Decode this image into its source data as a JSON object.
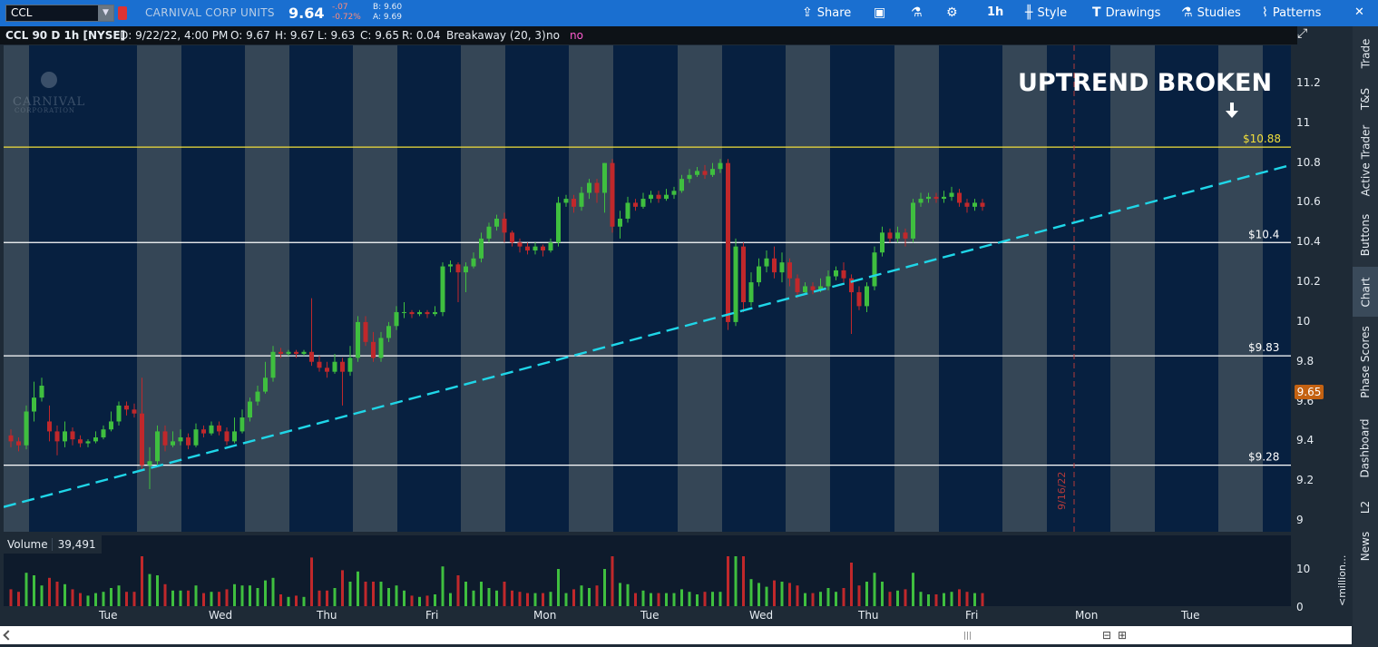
{
  "toolbar": {
    "symbol": "CCL",
    "company": "CARNIVAL CORP UNITS",
    "last": "9.64",
    "change": "-.07",
    "change_pct": "-0.72%",
    "bid": "B: 9.60",
    "ask": "A: 9.69",
    "share": "Share",
    "aggregation": "1h",
    "style": "Style",
    "drawings": "Drawings",
    "studies": "Studies",
    "patterns": "Patterns",
    "icons": {
      "share": "share-icon",
      "template": "template-icon",
      "flask": "flask-icon",
      "gear": "gear-icon",
      "candles": "candlestick-icon",
      "drawings": "text-t-icon",
      "studies": "flask-icon",
      "patterns": "patterns-icon",
      "close": "close-icon"
    }
  },
  "infobar": {
    "title": "CCL 90 D 1h [NYSE]",
    "date": "D: 9/22/22, 4:00 PM",
    "open": "O: 9.67",
    "high": "H: 9.67",
    "low": "L: 9.63",
    "close": "C: 9.65",
    "range": "R: 0.04",
    "study": "Breakaway (20, 3)",
    "no1": "no",
    "no2": "no"
  },
  "annotation": {
    "text": "UPTREND BROKEN",
    "date_marker": "9/16/22",
    "logo_text_1": "CARNIVAL",
    "logo_text_2": "CORPORATION"
  },
  "levels": [
    {
      "value": 10.88,
      "label": "$10.88",
      "color": "#f2df3a"
    },
    {
      "value": 10.4,
      "label": "$10.4",
      "color": "#ffffff"
    },
    {
      "value": 9.83,
      "label": "$9.83",
      "color": "#ffffff"
    },
    {
      "value": 9.28,
      "label": "$9.28",
      "color": "#ffffff"
    }
  ],
  "current_price_label": "9.65",
  "volume": {
    "label": "Volume",
    "value": "39,491",
    "axis_top": "10",
    "axis_bottom": "0",
    "unit": "<million..."
  },
  "side_tabs": [
    "Trade",
    "T&S",
    "Active Trader",
    "Buttons",
    "Chart",
    "Phase Scores",
    "Dashboard",
    "L2",
    "News"
  ],
  "chart_data": {
    "type": "candlestick",
    "ylim": [
      9.0,
      11.4
    ],
    "yticks": [
      9,
      9.2,
      9.4,
      9.6,
      9.8,
      10,
      10.2,
      10.4,
      10.6,
      10.8,
      11,
      11.2
    ],
    "xticks": [
      "Tue",
      "Wed",
      "Thu",
      "Fri",
      "Mon",
      "Tue",
      "Wed",
      "Thu",
      "Fri",
      "Mon",
      "Tue"
    ],
    "trendline": {
      "from": [
        0,
        9.07
      ],
      "to": [
        139,
        10.79
      ]
    },
    "candles": [
      [
        9.43,
        9.4,
        9.46,
        9.37
      ],
      [
        9.4,
        9.38,
        9.42,
        9.35
      ],
      [
        9.38,
        9.55,
        9.58,
        9.36
      ],
      [
        9.55,
        9.62,
        9.7,
        9.5
      ],
      [
        9.62,
        9.68,
        9.72,
        9.6
      ],
      [
        9.5,
        9.45,
        9.58,
        9.4
      ],
      [
        9.45,
        9.4,
        9.48,
        9.33
      ],
      [
        9.4,
        9.45,
        9.5,
        9.37
      ],
      [
        9.45,
        9.41,
        9.47,
        9.38
      ],
      [
        9.41,
        9.39,
        9.43,
        9.37
      ],
      [
        9.39,
        9.4,
        9.41,
        9.37
      ],
      [
        9.4,
        9.42,
        9.45,
        9.39
      ],
      [
        9.42,
        9.46,
        9.48,
        9.41
      ],
      [
        9.46,
        9.5,
        9.55,
        9.45
      ],
      [
        9.5,
        9.58,
        9.6,
        9.48
      ],
      [
        9.58,
        9.56,
        9.6,
        9.53
      ],
      [
        9.56,
        9.54,
        9.59,
        9.52
      ],
      [
        9.54,
        9.28,
        9.72,
        9.25
      ],
      [
        9.28,
        9.3,
        9.37,
        9.16
      ],
      [
        9.3,
        9.45,
        9.48,
        9.28
      ],
      [
        9.45,
        9.38,
        9.48,
        9.35
      ],
      [
        9.38,
        9.4,
        9.45,
        9.37
      ],
      [
        9.4,
        9.42,
        9.46,
        9.38
      ],
      [
        9.42,
        9.38,
        9.44,
        9.36
      ],
      [
        9.38,
        9.46,
        9.49,
        9.37
      ],
      [
        9.46,
        9.44,
        9.48,
        9.42
      ],
      [
        9.44,
        9.48,
        9.5,
        9.43
      ],
      [
        9.48,
        9.45,
        9.5,
        9.43
      ],
      [
        9.45,
        9.4,
        9.47,
        9.38
      ],
      [
        9.4,
        9.45,
        9.52,
        9.39
      ],
      [
        9.45,
        9.52,
        9.56,
        9.44
      ],
      [
        9.52,
        9.6,
        9.62,
        9.5
      ],
      [
        9.6,
        9.65,
        9.68,
        9.58
      ],
      [
        9.65,
        9.72,
        9.8,
        9.64
      ],
      [
        9.72,
        9.85,
        9.88,
        9.7
      ],
      [
        9.85,
        9.84,
        9.87,
        9.82
      ],
      [
        9.84,
        9.85,
        9.86,
        9.83
      ],
      [
        9.85,
        9.84,
        9.86,
        9.82
      ],
      [
        9.84,
        9.85,
        9.86,
        9.83
      ],
      [
        9.85,
        9.8,
        10.12,
        9.78
      ],
      [
        9.8,
        9.77,
        9.83,
        9.75
      ],
      [
        9.77,
        9.75,
        9.8,
        9.72
      ],
      [
        9.75,
        9.8,
        9.84,
        9.74
      ],
      [
        9.8,
        9.75,
        9.82,
        9.58
      ],
      [
        9.75,
        9.82,
        9.88,
        9.73
      ],
      [
        9.82,
        10.0,
        10.03,
        9.8
      ],
      [
        10.0,
        9.9,
        10.03,
        9.88
      ],
      [
        9.9,
        9.82,
        9.95,
        9.8
      ],
      [
        9.82,
        9.92,
        9.95,
        9.8
      ],
      [
        9.92,
        9.98,
        10.0,
        9.9
      ],
      [
        9.98,
        10.05,
        10.08,
        9.96
      ],
      [
        10.05,
        10.05,
        10.1,
        10.02
      ],
      [
        10.05,
        10.04,
        10.06,
        10.02
      ],
      [
        10.04,
        10.05,
        10.06,
        10.03
      ],
      [
        10.05,
        10.04,
        10.06,
        10.02
      ],
      [
        10.04,
        10.05,
        10.08,
        10.03
      ],
      [
        10.05,
        10.28,
        10.3,
        10.03
      ],
      [
        10.28,
        10.29,
        10.31,
        10.25
      ],
      [
        10.29,
        10.25,
        10.3,
        10.1
      ],
      [
        10.25,
        10.28,
        10.3,
        10.15
      ],
      [
        10.28,
        10.32,
        10.35,
        10.27
      ],
      [
        10.32,
        10.42,
        10.45,
        10.3
      ],
      [
        10.42,
        10.48,
        10.5,
        10.4
      ],
      [
        10.48,
        10.52,
        10.54,
        10.46
      ],
      [
        10.52,
        10.45,
        10.55,
        10.4
      ],
      [
        10.45,
        10.4,
        10.46,
        10.38
      ],
      [
        10.4,
        10.38,
        10.42,
        10.35
      ],
      [
        10.38,
        10.36,
        10.4,
        10.34
      ],
      [
        10.36,
        10.38,
        10.4,
        10.34
      ],
      [
        10.38,
        10.36,
        10.39,
        10.33
      ],
      [
        10.36,
        10.4,
        10.42,
        10.35
      ],
      [
        10.4,
        10.6,
        10.63,
        10.38
      ],
      [
        10.6,
        10.62,
        10.64,
        10.58
      ],
      [
        10.62,
        10.58,
        10.64,
        10.55
      ],
      [
        10.58,
        10.65,
        10.68,
        10.56
      ],
      [
        10.65,
        10.7,
        10.72,
        10.62
      ],
      [
        10.7,
        10.65,
        10.72,
        10.6
      ],
      [
        10.65,
        10.8,
        10.8,
        10.55
      ],
      [
        10.8,
        10.48,
        10.82,
        10.45
      ],
      [
        10.48,
        10.52,
        10.56,
        10.42
      ],
      [
        10.52,
        10.6,
        10.63,
        10.5
      ],
      [
        10.6,
        10.58,
        10.62,
        10.56
      ],
      [
        10.58,
        10.62,
        10.65,
        10.57
      ],
      [
        10.62,
        10.64,
        10.66,
        10.6
      ],
      [
        10.64,
        10.62,
        10.66,
        10.6
      ],
      [
        10.62,
        10.64,
        10.67,
        10.61
      ],
      [
        10.64,
        10.66,
        10.68,
        10.62
      ],
      [
        10.66,
        10.72,
        10.74,
        10.65
      ],
      [
        10.72,
        10.74,
        10.77,
        10.7
      ],
      [
        10.74,
        10.76,
        10.78,
        10.73
      ],
      [
        10.76,
        10.74,
        10.79,
        10.72
      ],
      [
        10.74,
        10.77,
        10.8,
        10.73
      ],
      [
        10.77,
        10.8,
        10.82,
        10.75
      ],
      [
        10.8,
        10.0,
        10.82,
        9.96
      ],
      [
        10.0,
        10.38,
        10.42,
        9.98
      ],
      [
        10.38,
        10.1,
        10.4,
        10.05
      ],
      [
        10.1,
        10.2,
        10.25,
        10.08
      ],
      [
        10.2,
        10.28,
        10.32,
        10.18
      ],
      [
        10.28,
        10.32,
        10.36,
        10.25
      ],
      [
        10.32,
        10.25,
        10.38,
        10.22
      ],
      [
        10.25,
        10.3,
        10.35,
        10.2
      ],
      [
        10.3,
        10.22,
        10.32,
        10.18
      ],
      [
        10.22,
        10.15,
        10.24,
        10.12
      ],
      [
        10.15,
        10.18,
        10.2,
        10.14
      ],
      [
        10.18,
        10.16,
        10.2,
        10.14
      ],
      [
        10.16,
        10.18,
        10.22,
        10.15
      ],
      [
        10.18,
        10.23,
        10.26,
        10.16
      ],
      [
        10.23,
        10.26,
        10.28,
        10.21
      ],
      [
        10.26,
        10.22,
        10.3,
        10.2
      ],
      [
        10.22,
        10.15,
        10.24,
        9.94
      ],
      [
        10.15,
        10.08,
        10.18,
        10.06
      ],
      [
        10.08,
        10.18,
        10.2,
        10.05
      ],
      [
        10.18,
        10.35,
        10.38,
        10.16
      ],
      [
        10.35,
        10.45,
        10.48,
        10.33
      ],
      [
        10.45,
        10.42,
        10.47,
        10.4
      ],
      [
        10.42,
        10.45,
        10.48,
        10.4
      ],
      [
        10.45,
        10.42,
        10.47,
        10.38
      ],
      [
        10.42,
        10.6,
        10.62,
        10.4
      ],
      [
        10.6,
        10.62,
        10.65,
        10.58
      ],
      [
        10.62,
        10.63,
        10.65,
        10.6
      ],
      [
        10.63,
        10.62,
        10.65,
        10.6
      ],
      [
        10.62,
        10.63,
        10.66,
        10.6
      ],
      [
        10.63,
        10.65,
        10.68,
        10.61
      ],
      [
        10.65,
        10.6,
        10.67,
        10.58
      ],
      [
        10.6,
        10.58,
        10.62,
        10.55
      ],
      [
        10.58,
        10.6,
        10.62,
        10.56
      ],
      [
        10.6,
        10.58,
        10.62,
        10.56
      ]
    ]
  }
}
